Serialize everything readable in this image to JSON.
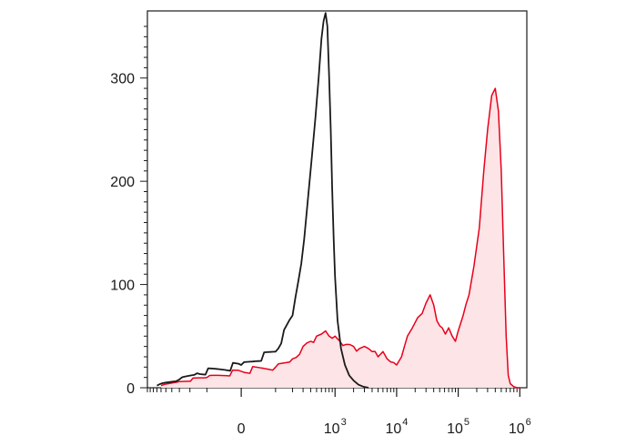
{
  "chart_data": {
    "type": "area",
    "title": "",
    "xlabel": "",
    "ylabel": "",
    "x_scale": "biexponential",
    "xlim": [
      -1000,
      1300000
    ],
    "ylim": [
      0,
      365
    ],
    "grid": false,
    "legend": "none",
    "x_ticks": [
      {
        "value": 0,
        "base": "0",
        "exp": ""
      },
      {
        "value": 1000,
        "base": "10",
        "exp": "3"
      },
      {
        "value": 10000,
        "base": "10",
        "exp": "4"
      },
      {
        "value": 100000,
        "base": "10",
        "exp": "5"
      },
      {
        "value": 1000000,
        "base": "10",
        "exp": "6"
      }
    ],
    "y_ticks": [
      {
        "value": 0,
        "label": "0"
      },
      {
        "value": 100,
        "label": "100"
      },
      {
        "value": 200,
        "label": "200"
      },
      {
        "value": 300,
        "label": "300"
      }
    ],
    "series": [
      {
        "color": "#1a1a1a",
        "fill": "none",
        "x": [
          -700,
          -500,
          -300,
          -150,
          0,
          100,
          200,
          280,
          350,
          420,
          480,
          540,
          600,
          650,
          700,
          750,
          800,
          850,
          900,
          950,
          1000,
          1100,
          1250,
          1450,
          1700,
          2000,
          2400,
          2900,
          3500
        ],
        "y": [
          2,
          5,
          8,
          14,
          22,
          35,
          70,
          120,
          175,
          225,
          262,
          300,
          338,
          355,
          363,
          350,
          302,
          250,
          192,
          145,
          108,
          65,
          38,
          22,
          12,
          7,
          3,
          1,
          0
        ]
      },
      {
        "color": "#e8001c",
        "fill": "#fde4e6",
        "x": [
          -600,
          -300,
          -100,
          0,
          100,
          200,
          300,
          400,
          500,
          600,
          700,
          800,
          900,
          1000,
          1200,
          1500,
          2000,
          2500,
          3000,
          3500,
          4000,
          5000,
          6000,
          7000,
          8000,
          10000,
          12000,
          15000,
          18000,
          22000,
          26000,
          30000,
          35000,
          40000,
          45000,
          50000,
          55000,
          62000,
          70000,
          80000,
          90000,
          100000,
          120000,
          150000,
          180000,
          220000,
          260000,
          300000,
          350000,
          400000,
          450000,
          500000,
          550000,
          600000,
          650000,
          700000,
          800000,
          900000,
          1000000
        ],
        "y": [
          2,
          6,
          10,
          16,
          20,
          28,
          40,
          45,
          50,
          52,
          55,
          50,
          48,
          50,
          45,
          42,
          40,
          38,
          40,
          38,
          35,
          30,
          35,
          28,
          25,
          22,
          30,
          50,
          58,
          68,
          72,
          82,
          90,
          80,
          65,
          60,
          58,
          52,
          58,
          50,
          45,
          55,
          70,
          90,
          118,
          155,
          210,
          250,
          283,
          290,
          268,
          210,
          125,
          50,
          12,
          4,
          1,
          0,
          0
        ]
      }
    ]
  }
}
